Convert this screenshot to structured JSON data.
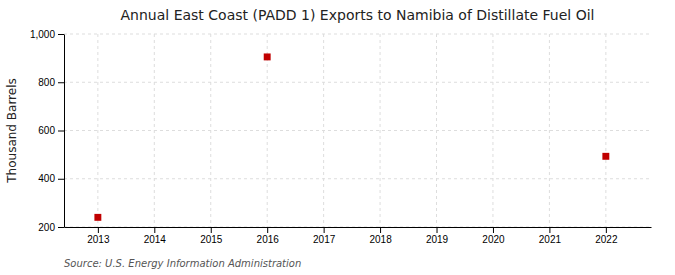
{
  "chart_data": {
    "type": "scatter",
    "title": "Annual East Coast (PADD 1) Exports to Namibia of Distillate Fuel Oil",
    "ylabel": "Thousand Barrels",
    "annotations": [
      "Source: U.S. Energy Information Administration"
    ],
    "x": [
      2013,
      2016,
      2022
    ],
    "values": [
      240,
      905,
      493
    ],
    "color": "#C00000",
    "marker": "square",
    "xlim": [
      2012.4,
      2022.8
    ],
    "ylim": [
      200,
      1000
    ],
    "xticks": [
      2013,
      2014,
      2015,
      2016,
      2017,
      2018,
      2019,
      2020,
      2021,
      2022
    ],
    "yticks": [
      200,
      400,
      600,
      800,
      {
        "value": 1000,
        "label": "1,000"
      }
    ],
    "grid": true
  }
}
